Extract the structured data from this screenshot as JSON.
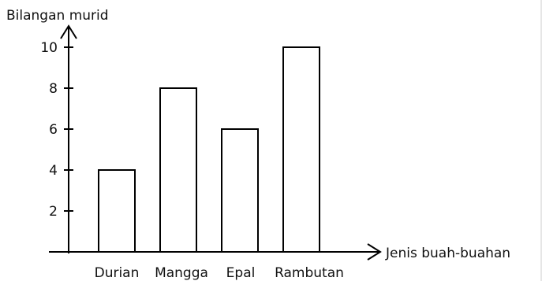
{
  "chart_data": {
    "type": "bar",
    "ylabel": "Bilangan murid",
    "xlabel": "Jenis buah-buahan",
    "categories": [
      "Durian",
      "Mangga",
      "Epal",
      "Rambutan"
    ],
    "values": [
      4,
      8,
      6,
      10
    ],
    "yticks": [
      2,
      4,
      6,
      8,
      10
    ],
    "ylim": [
      0,
      10
    ],
    "grid": false,
    "bar_fill": "#ffffff",
    "bar_stroke": "#000000"
  }
}
